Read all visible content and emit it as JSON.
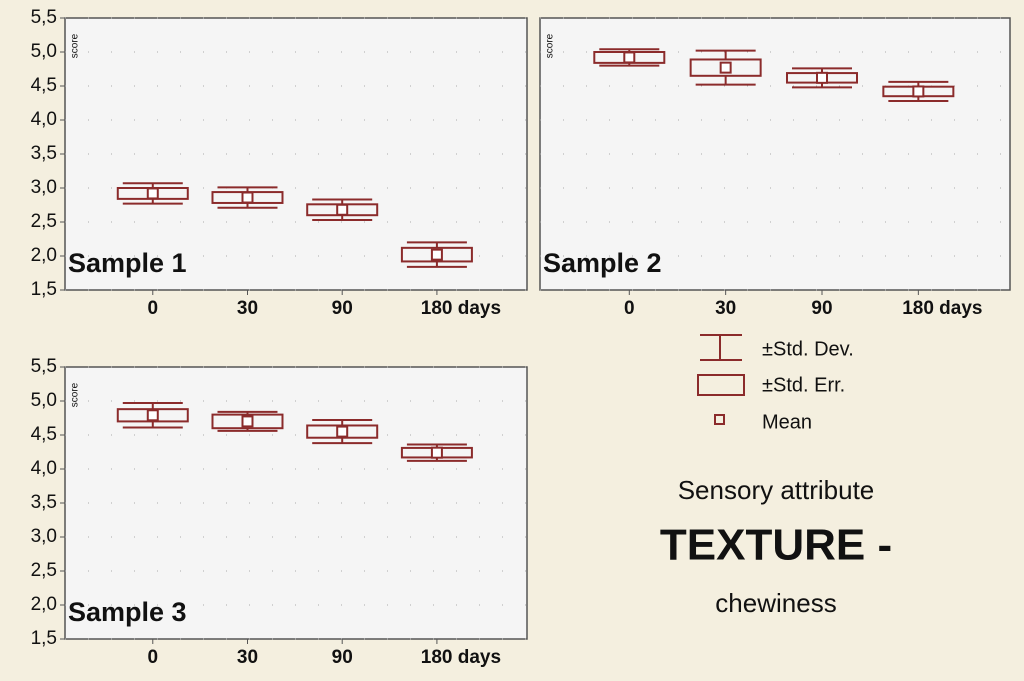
{
  "chart_data": [
    {
      "type": "box",
      "title": "Sample 1",
      "y_label": "score",
      "color": "#8b2b2b",
      "grid": true,
      "categories": [
        "0",
        "30",
        "90",
        "180 days"
      ],
      "mean": [
        2.92,
        2.86,
        2.68,
        2.02
      ],
      "se": [
        0.08,
        0.08,
        0.08,
        0.1
      ],
      "sd": [
        0.15,
        0.15,
        0.15,
        0.18
      ],
      "ylim": [
        1.5,
        5.5
      ],
      "yticks": [
        {
          "value": 1.5,
          "label": "1,5"
        },
        {
          "value": 2.0,
          "label": "2,0"
        },
        {
          "value": 2.5,
          "label": "2,5"
        },
        {
          "value": 3.0,
          "label": "3,0"
        },
        {
          "value": 3.5,
          "label": "3,5"
        },
        {
          "value": 4.0,
          "label": "4,0"
        },
        {
          "value": 4.5,
          "label": "4,5"
        },
        {
          "value": 5.0,
          "label": "5,0"
        },
        {
          "value": 5.5,
          "label": "5,5"
        }
      ]
    },
    {
      "type": "box",
      "title": "Sample 2",
      "y_label": "score",
      "color": "#8b2b2b",
      "grid": true,
      "categories": [
        "0",
        "30",
        "90",
        "180 days"
      ],
      "mean": [
        4.92,
        4.77,
        4.62,
        4.42
      ],
      "se": [
        0.08,
        0.12,
        0.07,
        0.07
      ],
      "sd": [
        0.12,
        0.25,
        0.14,
        0.14
      ],
      "ylim": [
        1.5,
        5.5
      ]
    },
    {
      "type": "box",
      "title": "Sample 3",
      "y_label": "score",
      "color": "#8b2b2b",
      "grid": true,
      "categories": [
        "0",
        "30",
        "90",
        "180 days"
      ],
      "mean": [
        4.79,
        4.7,
        4.55,
        4.24
      ],
      "se": [
        0.09,
        0.1,
        0.09,
        0.07
      ],
      "sd": [
        0.18,
        0.14,
        0.17,
        0.12
      ],
      "ylim": [
        1.5,
        5.5
      ],
      "yticks": [
        {
          "value": 1.5,
          "label": "1,5"
        },
        {
          "value": 2.0,
          "label": "2,0"
        },
        {
          "value": 2.5,
          "label": "2,5"
        },
        {
          "value": 3.0,
          "label": "3,0"
        },
        {
          "value": 3.5,
          "label": "3,5"
        },
        {
          "value": 4.0,
          "label": "4,0"
        },
        {
          "value": 4.5,
          "label": "4,5"
        },
        {
          "value": 5.0,
          "label": "5,0"
        },
        {
          "value": 5.5,
          "label": "5,5"
        }
      ]
    }
  ],
  "legend": {
    "sd": "±Std. Dev.",
    "se": "±Std. Err.",
    "mean": "Mean"
  },
  "caption": {
    "line1": "Sensory attribute",
    "line2": "TEXTURE -",
    "line3": "chewiness"
  }
}
